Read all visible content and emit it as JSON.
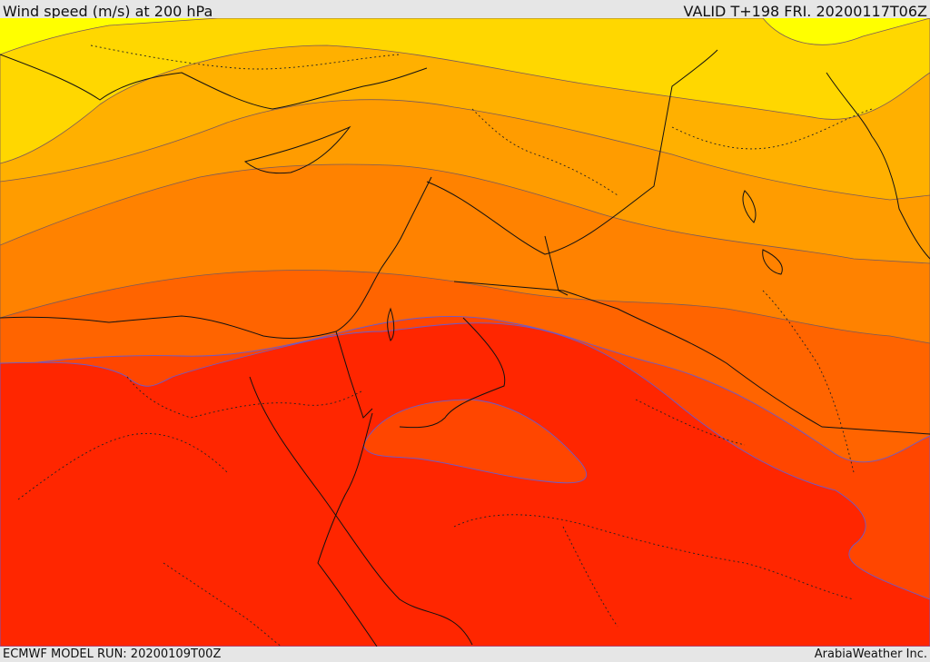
{
  "header": {
    "title": "Wind speed (m/s) at 200 hPa",
    "valid": "VALID T+198 FRI. 20200117T06Z"
  },
  "footer": {
    "model_run": "ECMWF MODEL RUN: 20200109T00Z",
    "credit": "ArabiaWeather Inc."
  },
  "map": {
    "field": "wind speed 200 hPa",
    "colors": {
      "band1": "#ffff00",
      "band2": "#ffd700",
      "band3": "#ffb000",
      "band4": "#ff9c00",
      "band5": "#ff8200",
      "band6": "#ff6400",
      "band7": "#ff4600",
      "band8": "#ff2600"
    }
  }
}
